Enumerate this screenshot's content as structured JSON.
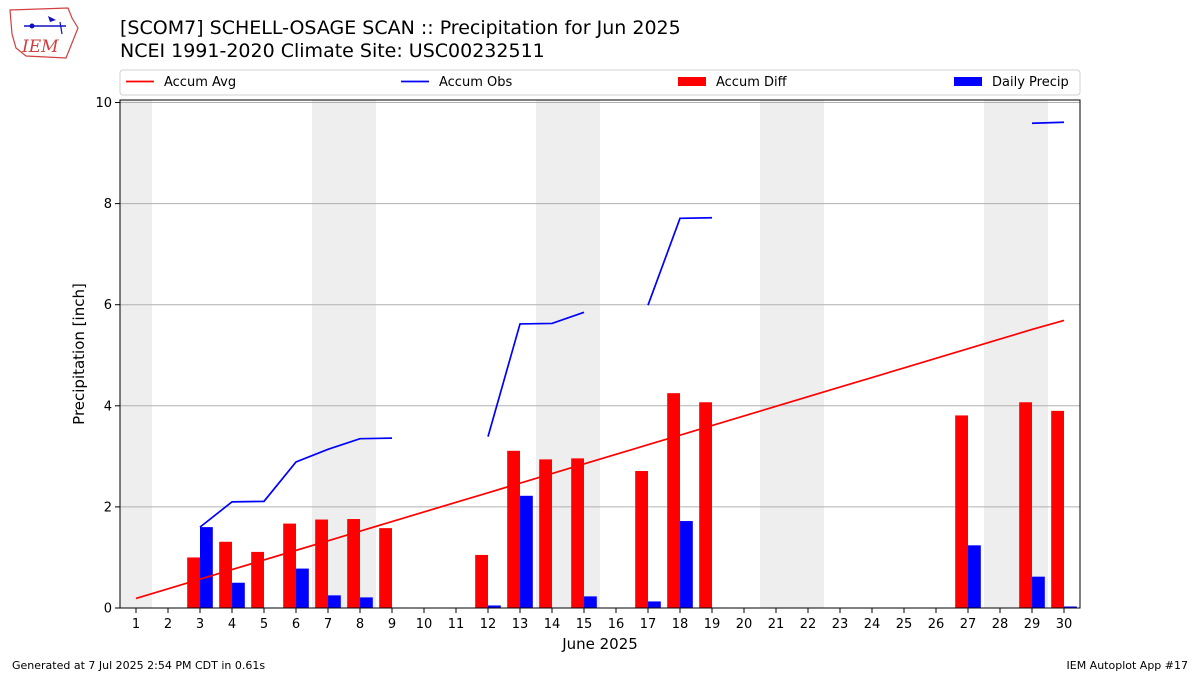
{
  "header": {
    "title_line1": "[SCOM7] SCHELL-OSAGE SCAN :: Precipitation for Jun 2025",
    "title_line2": "NCEI 1991-2020 Climate Site: USC00232511"
  },
  "logo": {
    "text": "IEM",
    "icon": "iowa-state-outline-logo-icon"
  },
  "footer": {
    "left": "Generated at 7 Jul 2025 2:54 PM CDT in 0.61s",
    "right": "IEM Autoplot App #17"
  },
  "colors": {
    "accum_avg": "#ff0000",
    "accum_obs": "#0000ff",
    "accum_diff": "#ff0000",
    "daily_precip": "#0000ff",
    "weekend_band": "#eeeeee",
    "grid": "#b0b0b0"
  },
  "chart_data": {
    "type": "bar",
    "xlabel": "June 2025",
    "ylabel": "Precipitation [inch]",
    "xlim": [
      0.5,
      30.5
    ],
    "ylim": [
      0,
      10.05
    ],
    "y_ticks": [
      0,
      2,
      4,
      6,
      8,
      10
    ],
    "x": [
      1,
      2,
      3,
      4,
      5,
      6,
      7,
      8,
      9,
      10,
      11,
      12,
      13,
      14,
      15,
      16,
      17,
      18,
      19,
      20,
      21,
      22,
      23,
      24,
      25,
      26,
      27,
      28,
      29,
      30
    ],
    "weekend_bands": [
      [
        0.5,
        1.5
      ],
      [
        6.5,
        8.5
      ],
      [
        13.5,
        15.5
      ],
      [
        20.5,
        22.5
      ],
      [
        27.5,
        29.5
      ]
    ],
    "grid": "y",
    "legend": {
      "placement": "top",
      "entries": [
        "Accum Avg",
        "Accum Obs",
        "Accum Diff",
        "Daily Precip"
      ]
    },
    "series": [
      {
        "name": "Accum Avg",
        "kind": "line",
        "values": [
          0.19,
          0.38,
          0.57,
          0.76,
          0.95,
          1.14,
          1.33,
          1.52,
          1.71,
          1.9,
          2.09,
          2.28,
          2.47,
          2.66,
          2.85,
          3.04,
          3.23,
          3.42,
          3.61,
          3.8,
          3.99,
          4.18,
          4.37,
          4.56,
          4.75,
          4.94,
          5.13,
          5.32,
          5.51,
          5.69
        ]
      },
      {
        "name": "Accum Obs",
        "kind": "line",
        "values": [
          null,
          null,
          1.6,
          2.1,
          2.11,
          2.89,
          3.14,
          3.35,
          3.36,
          null,
          null,
          3.39,
          5.62,
          5.63,
          5.85,
          null,
          5.99,
          7.71,
          7.72,
          null,
          null,
          null,
          null,
          null,
          null,
          null,
          null,
          null,
          9.59,
          9.61
        ]
      },
      {
        "name": "Accum Diff",
        "kind": "bar",
        "values": [
          0,
          0,
          1.0,
          1.31,
          1.11,
          1.67,
          1.75,
          1.76,
          1.58,
          0,
          0,
          1.05,
          3.11,
          2.94,
          2.96,
          0,
          2.71,
          4.25,
          4.07,
          0,
          0,
          0,
          0,
          0,
          0,
          0,
          3.81,
          0,
          4.07,
          3.9
        ]
      },
      {
        "name": "Daily Precip",
        "kind": "bar",
        "values": [
          0,
          0,
          1.6,
          0.5,
          0.01,
          0.78,
          0.25,
          0.21,
          0.01,
          0,
          0,
          0.05,
          2.22,
          0.01,
          0.23,
          0,
          0.13,
          1.72,
          0.01,
          0,
          0,
          0,
          0,
          0,
          0,
          0,
          1.24,
          0,
          0.62,
          0.03
        ]
      }
    ]
  }
}
